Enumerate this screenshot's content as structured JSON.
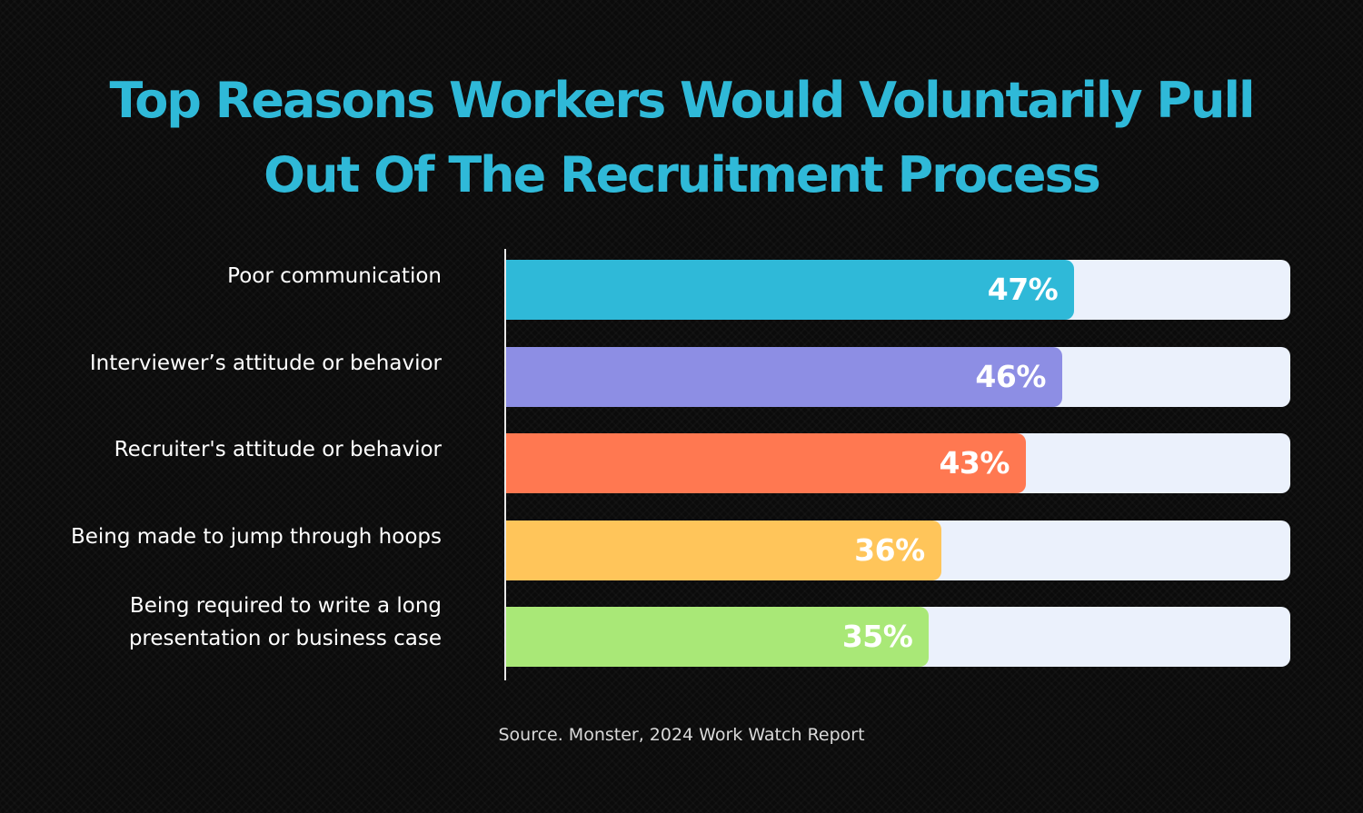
{
  "chart_data": {
    "type": "bar",
    "orientation": "horizontal",
    "title": "Top Reasons Workers Would Voluntarily Pull\nOut Of The Recruitment Process",
    "categories": [
      "Poor communication",
      "Interviewer’s attitude or behavior",
      "Recruiter's attitude or behavior",
      "Being made to jump through hoops",
      "Being required to write a long \npresentation or business case"
    ],
    "values": [
      47,
      46,
      43,
      36,
      35
    ],
    "value_labels": [
      "47%",
      "46%",
      "43%",
      "36%",
      "35%"
    ],
    "xlim": [
      0,
      64
    ],
    "unit": "%",
    "grid": false,
    "legend": "none"
  },
  "colors": {
    "title": "#2fb9d8",
    "bars": [
      "#2fb9d8",
      "#8d8ee4",
      "#ff7851",
      "#ffc55a",
      "#a9e877"
    ],
    "track": "#ebf1fc",
    "background": "#0b0b0b"
  },
  "source": "Source. Monster, 2024 Work Watch Report"
}
